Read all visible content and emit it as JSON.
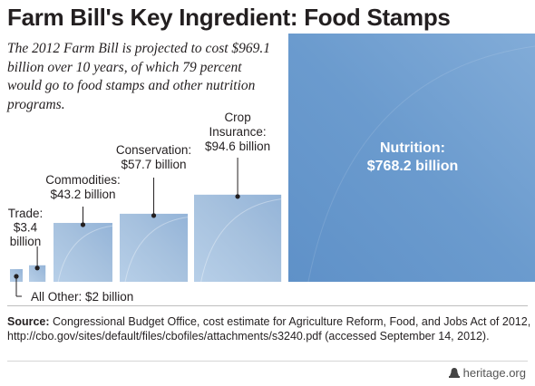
{
  "title": "Farm Bill's Key Ingredient: Food Stamps",
  "subtitle": "The 2012 Farm Bill is projected to cost $969.1 billion over 10 years, of which 79 percent would go to food stamps and other nutrition programs.",
  "source_label": "Source:",
  "source_text": "Congressional Budget Office, cost estimate for Agriculture Reform, Food, and Jobs Act of 2012, http://cbo.gov/sites/default/files/cbofiles/attachments/s3240.pdf (accessed September 14, 2012).",
  "brand": "heritage.org",
  "colors": {
    "square": "#a9c3e0",
    "nutrition": "#6a9acd",
    "text": "#231f20"
  },
  "chart_data": {
    "type": "area",
    "title": "Farm Bill's Key Ingredient: Food Stamps",
    "unit": "billion",
    "categories": [
      "All Other",
      "Trade",
      "Commodities",
      "Conservation",
      "Crop Insurance",
      "Nutrition"
    ],
    "values": [
      2,
      3.4,
      43.2,
      57.7,
      94.6,
      768.2
    ],
    "total": 969.1,
    "labels": [
      [
        "All Other: $2 billion"
      ],
      [
        "Trade:",
        "$3.4",
        "billion"
      ],
      [
        "Commodities:",
        "$43.2 billion"
      ],
      [
        "Conservation:",
        "$57.7 billion"
      ],
      [
        "Crop",
        "Insurance:",
        "$94.6 billion"
      ],
      [
        "Nutrition:",
        "$768.2 billion"
      ]
    ]
  }
}
